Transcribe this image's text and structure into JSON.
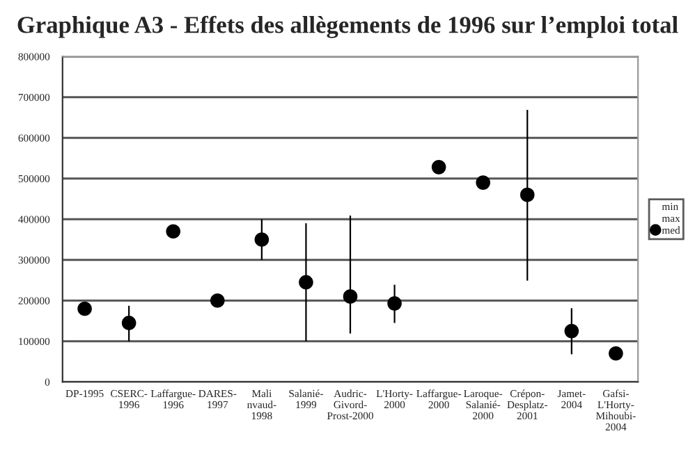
{
  "chart_data": {
    "type": "scatter",
    "title": "Graphique A3 - Effets des allègements de 1996 sur l’emploi total",
    "categories": [
      "DP-1995",
      "CSERC-\n1996",
      "Laffargue-\n1996",
      "DARES-\n1997",
      "Mali\nnvaud-\n1998",
      "Salanié-\n1999",
      "Audric-\nGivord-\nProst-2000",
      "L'Horty-\n2000",
      "Laffargue-\n2000",
      "Laroque-\nSalanié-\n2000",
      "Crépon-\nDesplatz-\n2001",
      "Jamet-\n2004",
      "Gafsi-\nL'Horty-\nMihoubi-\n2004"
    ],
    "series": [
      {
        "name": "min",
        "marker": "none",
        "color": "#000000",
        "values": [
          null,
          null,
          null,
          null,
          null,
          null,
          null,
          null,
          null,
          null,
          null,
          null,
          null
        ]
      },
      {
        "name": "max",
        "marker": "none",
        "color": "#000000",
        "values": [
          null,
          null,
          null,
          null,
          null,
          null,
          null,
          null,
          null,
          null,
          null,
          null,
          null
        ]
      },
      {
        "name": "med",
        "marker": "circle",
        "color": "#000000",
        "values": [
          180000,
          145000,
          370000,
          200000,
          350000,
          245000,
          210000,
          193000,
          528000,
          490000,
          460000,
          125000,
          70000
        ],
        "errors": [
          null,
          [
            100000,
            187000
          ],
          null,
          null,
          [
            300000,
            400000
          ],
          [
            100000,
            390000
          ],
          [
            119000,
            409000
          ],
          [
            145000,
            239000
          ],
          null,
          null,
          [
            249000,
            669000
          ],
          [
            68000,
            181000
          ],
          null
        ]
      }
    ],
    "ylim": [
      0,
      800000
    ],
    "yticks": [
      0,
      100000,
      200000,
      300000,
      400000,
      500000,
      600000,
      700000,
      800000
    ],
    "grid": "y",
    "legend": "right"
  }
}
